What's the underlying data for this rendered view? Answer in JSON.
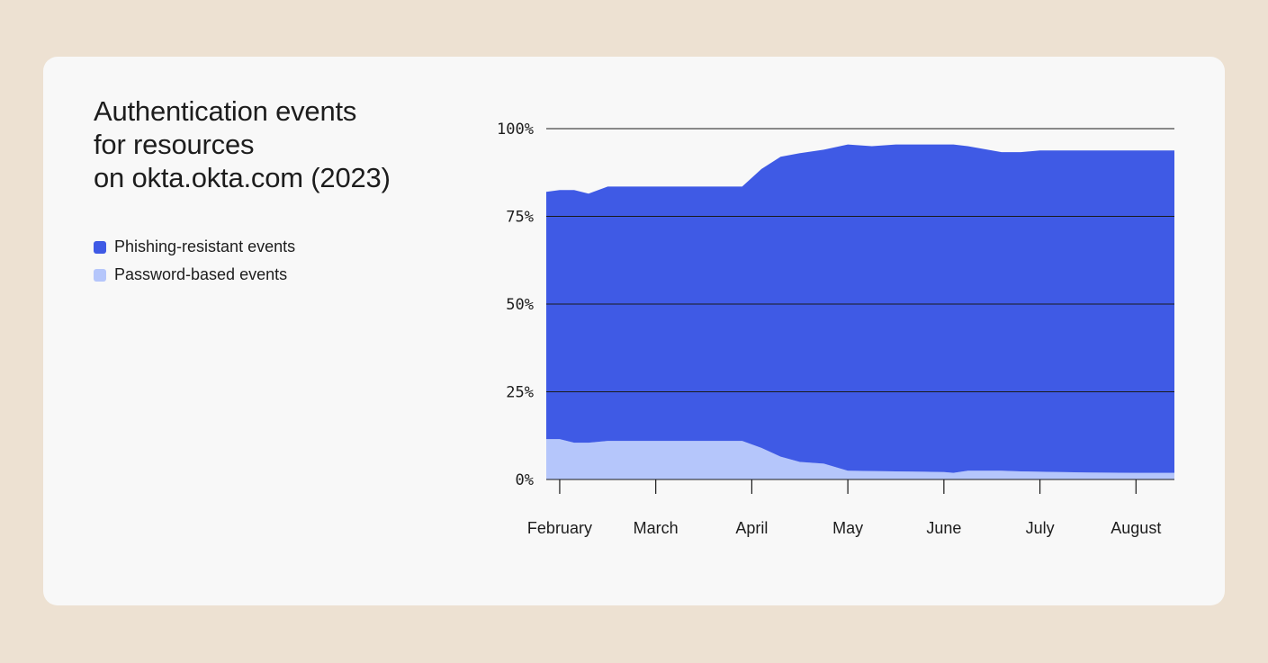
{
  "title_lines": [
    "Authentication events",
    "for resources",
    "on okta.okta.com (2023)"
  ],
  "legend": [
    {
      "label": "Phishing-resistant events",
      "color": "#3f5ae5"
    },
    {
      "label": "Password-based events",
      "color": "#b5c6fb"
    }
  ],
  "chart_data": {
    "type": "area",
    "stacked": true,
    "x_labels": [
      "February",
      "March",
      "April",
      "May",
      "June",
      "July",
      "August"
    ],
    "y_ticks": [
      "0%",
      "25%",
      "50%",
      "75%",
      "100%"
    ],
    "ylim": [
      0,
      100
    ],
    "grid": true,
    "legend_position": "left",
    "x_domain": [
      0.86,
      7.4
    ],
    "x": [
      0.86,
      1.0,
      1.15,
      1.3,
      1.5,
      1.7,
      2.0,
      2.3,
      2.6,
      2.9,
      3.1,
      3.3,
      3.5,
      3.75,
      4.0,
      4.25,
      4.5,
      4.8,
      5.0,
      5.1,
      5.25,
      5.6,
      5.8,
      6.0,
      6.5,
      7.0,
      7.4
    ],
    "series": [
      {
        "name": "Password-based events",
        "color": "#b5c6fb",
        "values": [
          11.5,
          11.5,
          10.5,
          10.5,
          11,
          11,
          11,
          11,
          11,
          11,
          9,
          6.5,
          5,
          4.5,
          2.5,
          2.4,
          2.3,
          2.2,
          2.1,
          1.9,
          2.5,
          2.5,
          2.3,
          2.2,
          2.0,
          1.9,
          1.9
        ]
      },
      {
        "name": "Phishing-resistant events",
        "color": "#3f5ae5",
        "values": [
          70.5,
          71,
          72,
          71,
          72.5,
          72.5,
          72.5,
          72.5,
          72.5,
          72.5,
          79.5,
          85.5,
          88,
          89.5,
          93,
          92.6,
          93.2,
          93.3,
          93.4,
          93.6,
          92.5,
          90.8,
          91,
          91.6,
          91.8,
          91.9,
          91.9
        ]
      }
    ]
  }
}
